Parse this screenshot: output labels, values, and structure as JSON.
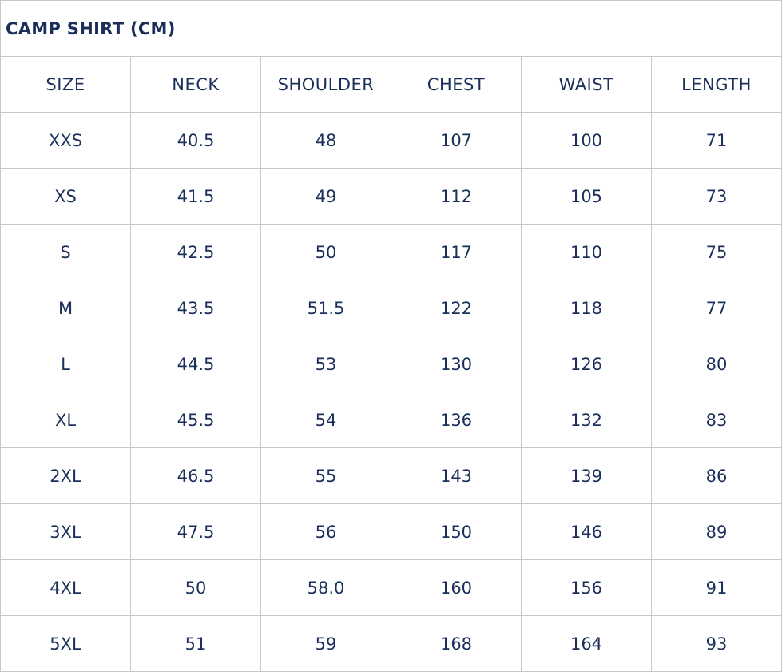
{
  "title": "CAMP SHIRT (CM)",
  "colors": {
    "text": "#1b2f5a",
    "border": "#c8c8c8"
  },
  "headers": [
    "SIZE",
    "NECK",
    "SHOULDER",
    "CHEST",
    "WAIST",
    "LENGTH"
  ],
  "rows": [
    [
      "XXS",
      "40.5",
      "48",
      "107",
      "100",
      "71"
    ],
    [
      "XS",
      "41.5",
      "49",
      "112",
      "105",
      "73"
    ],
    [
      "S",
      "42.5",
      "50",
      "117",
      "110",
      "75"
    ],
    [
      "M",
      "43.5",
      "51.5",
      "122",
      "118",
      "77"
    ],
    [
      "L",
      "44.5",
      "53",
      "130",
      "126",
      "80"
    ],
    [
      "XL",
      "45.5",
      "54",
      "136",
      "132",
      "83"
    ],
    [
      "2XL",
      "46.5",
      "55",
      "143",
      "139",
      "86"
    ],
    [
      "3XL",
      "47.5",
      "56",
      "150",
      "146",
      "89"
    ],
    [
      "4XL",
      "50",
      "58.0",
      "160",
      "156",
      "91"
    ],
    [
      "5XL",
      "51",
      "59",
      "168",
      "164",
      "93"
    ]
  ]
}
